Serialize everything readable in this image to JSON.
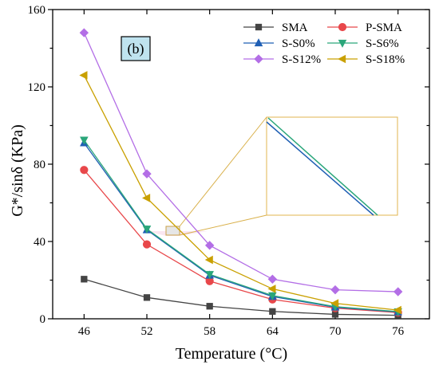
{
  "chart_data": {
    "type": "line",
    "panel_label": "(b)",
    "xlabel": "Temperature (°C)",
    "ylabel": "G*/sinδ (KPa)",
    "x": [
      46,
      52,
      58,
      64,
      70,
      76
    ],
    "x_ticks": [
      "46",
      "52",
      "58",
      "64",
      "70",
      "76"
    ],
    "ylim": [
      0,
      160
    ],
    "y_ticks": [
      "0",
      "40",
      "80",
      "120",
      "160"
    ],
    "legend_position": "top-right",
    "series": [
      {
        "name": "SMA",
        "color": "#444444",
        "marker": "square",
        "values": [
          20.5,
          11.0,
          6.5,
          3.8,
          2.3,
          1.8
        ]
      },
      {
        "name": "P-SMA",
        "color": "#e8474a",
        "marker": "circle",
        "values": [
          77.0,
          38.5,
          19.5,
          10.0,
          5.5,
          3.2
        ]
      },
      {
        "name": "S-S0%",
        "color": "#1f5fb4",
        "marker": "triangle-up",
        "values": [
          91.0,
          46.0,
          22.5,
          11.5,
          6.0,
          3.5
        ]
      },
      {
        "name": "S-S6%",
        "color": "#2aa67a",
        "marker": "triangle-down",
        "values": [
          92.5,
          46.5,
          23.0,
          12.0,
          6.3,
          3.7
        ]
      },
      {
        "name": "S-S12%",
        "color": "#b36ee6",
        "marker": "diamond",
        "values": [
          148.0,
          75.0,
          38.0,
          20.5,
          15.0,
          14.0
        ]
      },
      {
        "name": "S-S18%",
        "color": "#c9a000",
        "marker": "triangle-left",
        "values": [
          126.0,
          62.5,
          30.5,
          15.5,
          8.0,
          4.5
        ]
      }
    ]
  }
}
